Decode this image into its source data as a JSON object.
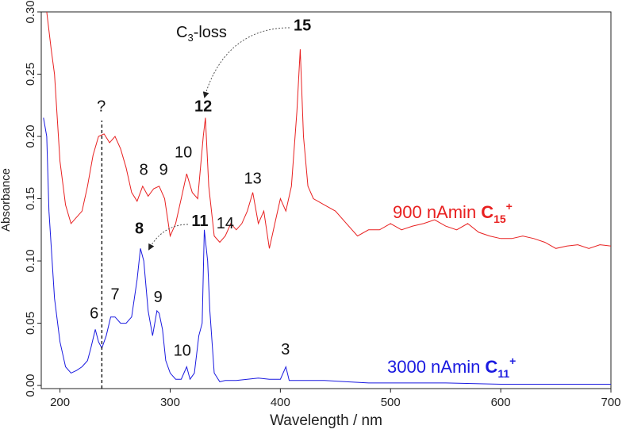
{
  "chart_data": {
    "type": "line",
    "x_label": "Wavelength / nm",
    "y_label": "Absorbance",
    "xlim": [
      183,
      700
    ],
    "xticks": [
      200,
      300,
      400,
      500,
      600,
      700
    ],
    "ylim": [
      -0.0025,
      0.3
    ],
    "yticks": [
      {
        "value": 0,
        "label": "0.00"
      },
      {
        "value": 0.05,
        "label": "0.05"
      },
      {
        "value": 0.1,
        "label": "0.10"
      },
      {
        "value": 0.15,
        "label": "0.15"
      },
      {
        "value": 0.2,
        "label": "0.20"
      },
      {
        "value": 0.25,
        "label": "0.25"
      },
      {
        "value": 0.3,
        "label": "0.30"
      }
    ],
    "series": [
      {
        "name": "900 nAmin",
        "ion": {
          "symbol": "C",
          "sub": "15",
          "sup": "+"
        },
        "color": "#e82020",
        "x": [
          188,
          192,
          195,
          200,
          205,
          210,
          215,
          220,
          225,
          230,
          235,
          240,
          245,
          250,
          255,
          260,
          265,
          270,
          275,
          280,
          285,
          290,
          295,
          300,
          305,
          310,
          315,
          320,
          325,
          330,
          332,
          335,
          340,
          345,
          350,
          355,
          360,
          365,
          370,
          375,
          380,
          385,
          390,
          395,
          400,
          405,
          410,
          415,
          418,
          421,
          425,
          430,
          440,
          450,
          460,
          470,
          480,
          490,
          500,
          510,
          520,
          530,
          540,
          550,
          560,
          570,
          580,
          590,
          600,
          610,
          620,
          630,
          640,
          650,
          660,
          670,
          680,
          690,
          700
        ],
        "values": [
          0.3,
          0.27,
          0.25,
          0.18,
          0.145,
          0.13,
          0.135,
          0.14,
          0.16,
          0.185,
          0.2,
          0.202,
          0.195,
          0.2,
          0.19,
          0.175,
          0.155,
          0.148,
          0.16,
          0.152,
          0.158,
          0.16,
          0.15,
          0.12,
          0.13,
          0.15,
          0.17,
          0.155,
          0.15,
          0.2,
          0.215,
          0.16,
          0.12,
          0.115,
          0.12,
          0.13,
          0.125,
          0.13,
          0.14,
          0.155,
          0.13,
          0.14,
          0.11,
          0.13,
          0.15,
          0.14,
          0.16,
          0.22,
          0.27,
          0.2,
          0.16,
          0.15,
          0.145,
          0.14,
          0.13,
          0.12,
          0.125,
          0.125,
          0.13,
          0.125,
          0.128,
          0.13,
          0.133,
          0.128,
          0.125,
          0.13,
          0.123,
          0.12,
          0.118,
          0.118,
          0.12,
          0.118,
          0.115,
          0.11,
          0.112,
          0.113,
          0.11,
          0.113,
          0.112
        ]
      },
      {
        "name": "3000 nAmin",
        "ion": {
          "symbol": "C",
          "sub": "11",
          "sup": "+"
        },
        "color": "#1a1ae0",
        "x": [
          185,
          188,
          190,
          195,
          200,
          205,
          210,
          215,
          220,
          225,
          228,
          232,
          235,
          238,
          242,
          246,
          250,
          255,
          260,
          265,
          270,
          273,
          276,
          280,
          284,
          288,
          290,
          293,
          296,
          300,
          305,
          310,
          315,
          318,
          322,
          326,
          329,
          331,
          334,
          336,
          340,
          345,
          350,
          360,
          370,
          380,
          390,
          400,
          405,
          408,
          420,
          440,
          460,
          480,
          500,
          550,
          600,
          650,
          700
        ],
        "values": [
          0.215,
          0.2,
          0.14,
          0.07,
          0.035,
          0.015,
          0.01,
          0.012,
          0.015,
          0.02,
          0.03,
          0.045,
          0.035,
          0.03,
          0.04,
          0.055,
          0.055,
          0.05,
          0.05,
          0.055,
          0.085,
          0.11,
          0.1,
          0.06,
          0.04,
          0.06,
          0.058,
          0.045,
          0.02,
          0.01,
          0.005,
          0.005,
          0.015,
          0.005,
          0.01,
          0.04,
          0.05,
          0.125,
          0.1,
          0.06,
          0.01,
          0.003,
          0.004,
          0.004,
          0.005,
          0.006,
          0.005,
          0.005,
          0.015,
          0.004,
          0.004,
          0.004,
          0.003,
          0.002,
          0.002,
          0.002,
          0.001,
          0.001,
          0.001
        ]
      }
    ],
    "reference_line": {
      "x": 238
    },
    "annotations": [
      {
        "text": "?",
        "x": 237.5,
        "y": 0.22,
        "series": 0,
        "bold": false
      },
      {
        "text": "8",
        "x": 276,
        "y": 0.169,
        "series": 0,
        "bold": false
      },
      {
        "text": "9",
        "x": 294,
        "y": 0.169,
        "series": 0,
        "bold": false
      },
      {
        "text": "10",
        "x": 312,
        "y": 0.183,
        "series": 0,
        "bold": false
      },
      {
        "text": "12",
        "x": 330,
        "y": 0.22,
        "series": 0,
        "bold": true
      },
      {
        "text": "13",
        "x": 375,
        "y": 0.162,
        "series": 0,
        "bold": false
      },
      {
        "text": "14",
        "x": 350,
        "y": 0.126,
        "series": 0,
        "bold": false
      },
      {
        "text": "15",
        "x": 420,
        "y": 0.285,
        "series": 0,
        "bold": true
      },
      {
        "text": "6",
        "x": 231,
        "y": 0.054,
        "series": 1,
        "bold": false
      },
      {
        "text": "7",
        "x": 250,
        "y": 0.069,
        "series": 1,
        "bold": false
      },
      {
        "text": "8",
        "x": 272,
        "y": 0.122,
        "series": 1,
        "bold": true
      },
      {
        "text": "11",
        "x": 327,
        "y": 0.128,
        "series": 1,
        "bold": true
      },
      {
        "text": "9",
        "x": 289,
        "y": 0.067,
        "series": 1,
        "bold": false
      },
      {
        "text": "10",
        "x": 311,
        "y": 0.024,
        "series": 1,
        "bold": false
      },
      {
        "text": "3",
        "x": 404.6,
        "y": 0.025,
        "series": 1,
        "bold": false
      }
    ],
    "loss_label": {
      "symbol": "C",
      "sub": "3",
      "text": "-loss"
    }
  }
}
